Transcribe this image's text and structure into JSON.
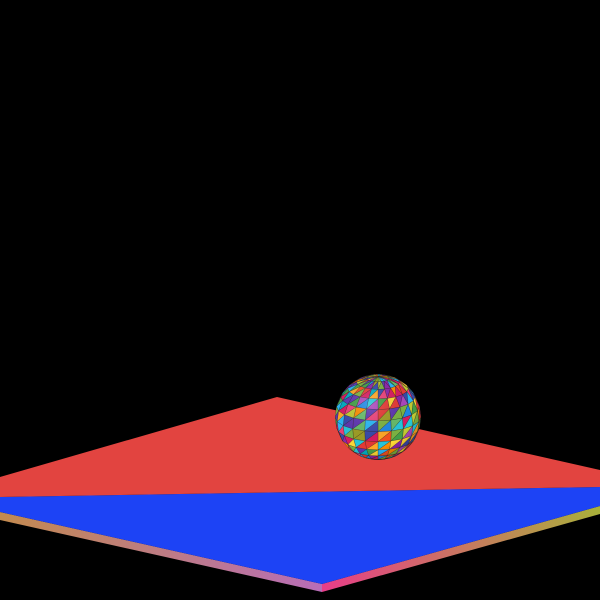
{
  "scene": {
    "background_color": "#000000",
    "colors": {
      "plane_top_red": "#E24440",
      "plane_top_blue": "#1D43F5",
      "plane_edge_left": "#C38A4E",
      "plane_edge_left_alt": "#B86DB8",
      "plane_edge_right": "#E83D88",
      "plane_edge_right_alt": "#A9B13A",
      "sphere_palette": [
        "#E53935",
        "#43A047",
        "#1E88E5",
        "#FDD835",
        "#8E24AA",
        "#00ACC1",
        "#FB8C00",
        "#D81B60",
        "#7CB342",
        "#5E35B1",
        "#26C6DA",
        "#F4511E",
        "#C0CA33",
        "#3949AB",
        "#EC407A",
        "#9E9D24",
        "#AB47BC",
        "#29B6F6",
        "#66BB6A",
        "#FFA726"
      ]
    }
  }
}
